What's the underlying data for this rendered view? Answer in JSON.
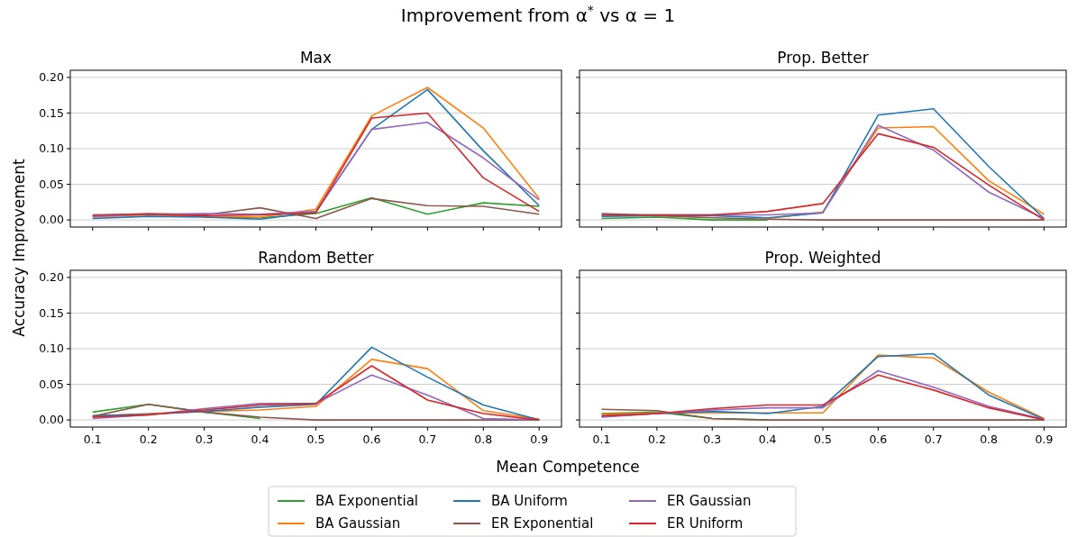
{
  "chart_data": [
    {
      "type": "line",
      "title": "Max",
      "annotations": [
        "Improvement from α$^{*}$ vs α = 1"
      ],
      "ylabel": "Accuracy Improvement",
      "x": [
        0.1,
        0.2,
        0.3,
        0.4,
        0.5,
        0.6,
        0.7,
        0.8,
        0.9
      ],
      "xlim": [
        0.06,
        0.94
      ],
      "xticks": [
        {
          "value": 0.1,
          "label": null
        },
        {
          "value": 0.2,
          "label": null
        },
        {
          "value": 0.3,
          "label": null
        },
        {
          "value": 0.4,
          "label": null
        },
        {
          "value": 0.5,
          "label": null
        },
        {
          "value": 0.6,
          "label": null
        },
        {
          "value": 0.7,
          "label": null
        },
        {
          "value": 0.8,
          "label": null
        },
        {
          "value": 0.9,
          "label": null
        }
      ],
      "ylim": [
        -0.01,
        0.21
      ],
      "yticks": [
        {
          "value": 0,
          "label": "0.00"
        },
        {
          "value": 0.05,
          "label": "0.05"
        },
        {
          "value": 0.1,
          "label": "0.10"
        },
        {
          "value": 0.15,
          "label": "0.15"
        },
        {
          "value": 0.2,
          "label": "0.20"
        }
      ],
      "grid": "y",
      "legend": "bottom",
      "tick_labels": "y",
      "series": [
        {
          "name": "BA Exponential",
          "color": "#2ca02c",
          "values": [
            null,
            null,
            0.004,
            0.003,
            0.009,
            0.031,
            0.008,
            0.024,
            0.019
          ]
        },
        {
          "name": "BA Gaussian",
          "color": "#ff7f0e",
          "values": [
            0.004,
            0.007,
            0.005,
            0.004,
            0.015,
            0.146,
            0.186,
            0.129,
            0.03
          ]
        },
        {
          "name": "BA Uniform",
          "color": "#1f77b4",
          "values": [
            0.002,
            0.005,
            0.004,
            0.001,
            0.011,
            0.127,
            0.183,
            0.097,
            0.02
          ]
        },
        {
          "name": "ER Exponential",
          "color": "#8c564b",
          "values": [
            0.006,
            0.009,
            0.007,
            0.017,
            0.002,
            0.03,
            0.02,
            0.019,
            0.008
          ]
        },
        {
          "name": "ER Gaussian",
          "color": "#9467bd",
          "values": [
            0.005,
            0.008,
            0.009,
            0.008,
            0.012,
            0.127,
            0.137,
            0.087,
            0.028
          ]
        },
        {
          "name": "ER Uniform",
          "color": "#d62728",
          "values": [
            0.007,
            0.008,
            0.006,
            0.007,
            0.01,
            0.143,
            0.15,
            0.059,
            0.012
          ]
        }
      ]
    },
    {
      "type": "line",
      "title": "Prop. Better",
      "x": [
        0.1,
        0.2,
        0.3,
        0.4,
        0.5,
        0.6,
        0.7,
        0.8,
        0.9
      ],
      "xlim": [
        0.06,
        0.94
      ],
      "xticks": [
        {
          "value": 0.1,
          "label": null
        },
        {
          "value": 0.2,
          "label": null
        },
        {
          "value": 0.3,
          "label": null
        },
        {
          "value": 0.4,
          "label": null
        },
        {
          "value": 0.5,
          "label": null
        },
        {
          "value": 0.6,
          "label": null
        },
        {
          "value": 0.7,
          "label": null
        },
        {
          "value": 0.8,
          "label": null
        },
        {
          "value": 0.9,
          "label": null
        }
      ],
      "ylim": [
        -0.01,
        0.21
      ],
      "yticks": [
        {
          "value": 0,
          "label": null
        },
        {
          "value": 0.05,
          "label": null
        },
        {
          "value": 0.1,
          "label": null
        },
        {
          "value": 0.15,
          "label": null
        },
        {
          "value": 0.2,
          "label": null
        }
      ],
      "grid": "y",
      "tick_labels": false,
      "series": [
        {
          "color": "#2ca02c",
          "values": [
            0.002,
            0.004,
            0.0,
            0.0,
            null,
            null,
            null,
            null,
            null
          ]
        },
        {
          "color": "#ff7f0e",
          "values": [
            null,
            null,
            null,
            0.002,
            0.011,
            0.129,
            0.131,
            0.055,
            0.008
          ]
        },
        {
          "color": "#1f77b4",
          "values": [
            0.005,
            0.006,
            0.006,
            0.003,
            0.01,
            0.147,
            0.156,
            0.075,
            0.002
          ]
        },
        {
          "color": "#8c564b",
          "values": [
            0.009,
            0.006,
            0.003,
            0.001,
            0.0,
            0.0,
            0.0,
            0.0,
            0.0
          ]
        },
        {
          "color": "#9467bd",
          "values": [
            0.007,
            0.007,
            0.007,
            0.007,
            0.01,
            0.133,
            0.098,
            0.039,
            0.002
          ]
        },
        {
          "color": "#d62728",
          "values": [
            0.007,
            0.007,
            0.007,
            0.012,
            0.023,
            0.121,
            0.102,
            0.049,
            0.0
          ]
        }
      ]
    },
    {
      "type": "line",
      "title": "Random Better",
      "xlabel": "Mean Competence",
      "x": [
        0.1,
        0.2,
        0.3,
        0.4,
        0.5,
        0.6,
        0.7,
        0.8,
        0.9
      ],
      "xlim": [
        0.06,
        0.94
      ],
      "xticks": [
        0.1,
        0.2,
        0.3,
        0.4,
        0.5,
        0.6,
        0.7,
        0.8,
        0.9
      ],
      "ylim": [
        -0.01,
        0.21
      ],
      "yticks": [
        {
          "value": 0,
          "label": "0.00"
        },
        {
          "value": 0.05,
          "label": "0.05"
        },
        {
          "value": 0.1,
          "label": "0.10"
        },
        {
          "value": 0.15,
          "label": "0.15"
        },
        {
          "value": 0.2,
          "label": "0.20"
        }
      ],
      "grid": "y",
      "series": [
        {
          "color": "#2ca02c",
          "values": [
            0.011,
            0.022,
            0.011,
            0.002,
            null,
            null,
            null,
            null,
            null
          ]
        },
        {
          "color": "#ff7f0e",
          "values": [
            0.005,
            0.009,
            0.012,
            0.014,
            0.019,
            0.085,
            0.072,
            0.013,
            0.001
          ]
        },
        {
          "color": "#1f77b4",
          "values": [
            0.006,
            0.008,
            0.012,
            0.018,
            0.022,
            0.102,
            0.06,
            0.021,
            0.0
          ]
        },
        {
          "color": "#8c564b",
          "values": [
            0.005,
            0.022,
            0.011,
            0.004,
            0.0,
            0.0,
            0.0,
            0.0,
            0.0
          ]
        },
        {
          "color": "#9467bd",
          "values": [
            0.002,
            0.007,
            0.016,
            0.023,
            0.023,
            0.063,
            0.035,
            0.002,
            0.0
          ]
        },
        {
          "color": "#d62728",
          "values": [
            0.004,
            0.007,
            0.014,
            0.021,
            0.023,
            0.076,
            0.028,
            0.009,
            0.0
          ]
        }
      ]
    },
    {
      "type": "line",
      "title": "Prop. Weighted",
      "x": [
        0.1,
        0.2,
        0.3,
        0.4,
        0.5,
        0.6,
        0.7,
        0.8,
        0.9
      ],
      "xlim": [
        0.06,
        0.94
      ],
      "xticks": [
        0.1,
        0.2,
        0.3,
        0.4,
        0.5,
        0.6,
        0.7,
        0.8,
        0.9
      ],
      "ylim": [
        -0.01,
        0.21
      ],
      "yticks": [
        {
          "value": 0,
          "label": null
        },
        {
          "value": 0.05,
          "label": null
        },
        {
          "value": 0.1,
          "label": null
        },
        {
          "value": 0.15,
          "label": null
        },
        {
          "value": 0.2,
          "label": null
        }
      ],
      "grid": "y",
      "tick_labels": "x",
      "series": [
        {
          "color": "#2ca02c",
          "values": [
            0.009,
            0.011,
            0.002,
            0.0,
            null,
            null,
            null,
            null,
            null
          ]
        },
        {
          "color": "#ff7f0e",
          "values": [
            0.008,
            0.01,
            0.01,
            0.01,
            0.01,
            0.091,
            0.087,
            0.039,
            0.002
          ]
        },
        {
          "color": "#1f77b4",
          "values": [
            0.005,
            0.009,
            0.012,
            0.009,
            0.019,
            0.089,
            0.093,
            0.035,
            0.001
          ]
        },
        {
          "color": "#8c564b",
          "values": [
            0.015,
            0.013,
            0.002,
            0.0,
            0.0,
            0.0,
            0.0,
            0.0,
            0.0
          ]
        },
        {
          "color": "#9467bd",
          "values": [
            0.004,
            0.009,
            0.014,
            0.017,
            0.017,
            0.069,
            0.046,
            0.019,
            0.001
          ]
        },
        {
          "color": "#d62728",
          "values": [
            0.006,
            0.009,
            0.016,
            0.021,
            0.021,
            0.063,
            0.042,
            0.017,
            0.0
          ]
        }
      ]
    }
  ]
}
